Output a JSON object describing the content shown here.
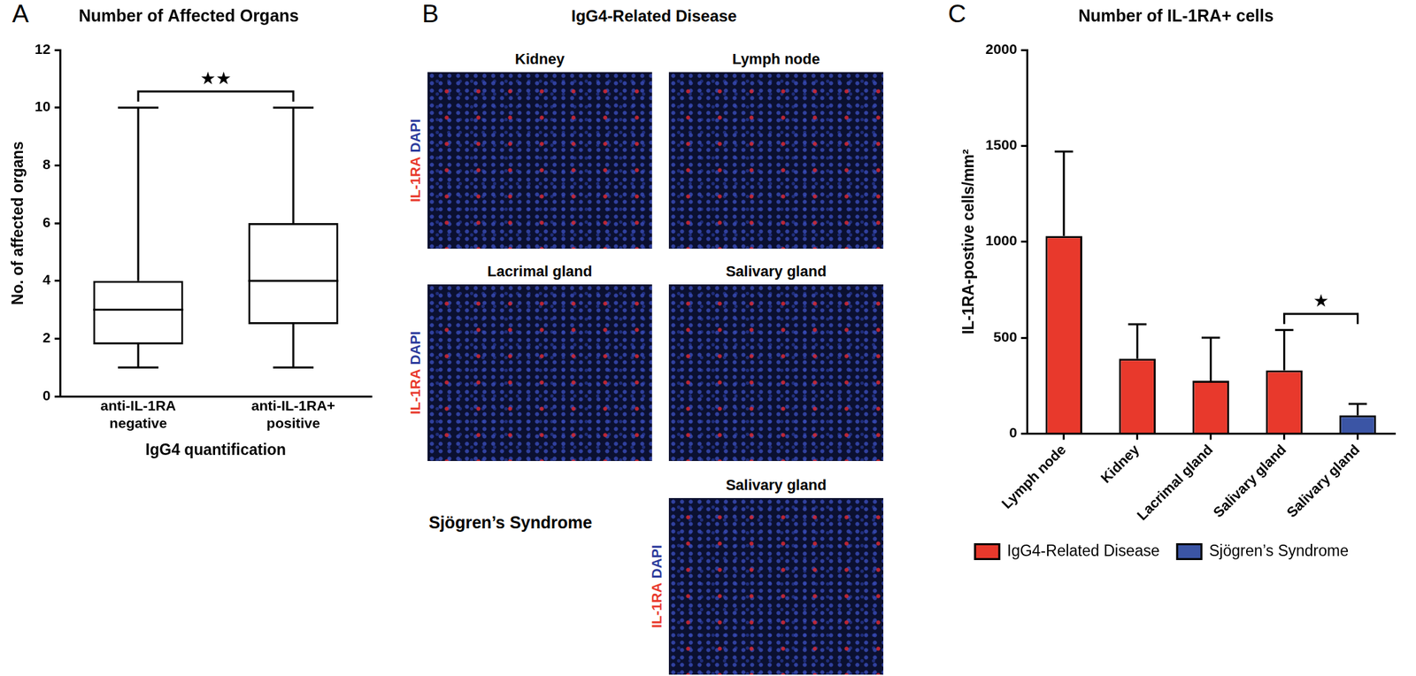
{
  "chart_data": [
    {
      "panel": "A",
      "type": "box",
      "title": "Number of Affected Organs",
      "x_label": "IgG4 quantification",
      "y_label": "No. of affected organs",
      "categories": [
        "anti-IL-1RA negative",
        "anti-IL-1RA+ positive"
      ],
      "values": [
        {
          "min": 1,
          "q1": 1.8,
          "median": 3,
          "q3": 4,
          "max": 10
        },
        {
          "min": 1,
          "q1": 2.5,
          "median": 4,
          "q3": 6,
          "max": 10
        }
      ],
      "color": "#000000",
      "ylim": [
        0,
        12
      ],
      "yticks": [
        0,
        2,
        4,
        6,
        8,
        10,
        12
      ],
      "grid": false,
      "annotations": [
        {
          "text": "★★",
          "between": [
            0,
            1
          ]
        }
      ]
    },
    {
      "panel": "C",
      "type": "bar",
      "title": "Number of IL-1RA+ cells",
      "y_label": "IL-1RA-postive cells/mm²",
      "categories": [
        "Lymph node",
        "Kidney",
        "Lacrimal gland",
        "Salivary gland",
        "Salivary gland"
      ],
      "series": [
        {
          "name": "IgG4-Related Disease",
          "color": "#e8392c",
          "values": [
            1030,
            390,
            275,
            330,
            null
          ],
          "error": [
            440,
            180,
            225,
            210,
            null
          ]
        },
        {
          "name": "Sjögren’s Syndrome",
          "color": "#3b55a5",
          "values": [
            null,
            null,
            null,
            null,
            95
          ],
          "error": [
            null,
            null,
            null,
            null,
            60
          ]
        }
      ],
      "ylim": [
        0,
        2000
      ],
      "yticks": [
        0,
        500,
        1000,
        1500,
        2000
      ],
      "grid": false,
      "legend": "bottom",
      "annotations": [
        {
          "text": "★",
          "between": [
            3,
            4
          ]
        }
      ]
    }
  ],
  "image_panel": {
    "panel": "B",
    "title": "IgG4-Related Disease",
    "stain": [
      {
        "text": "IL-1RA",
        "color": "#e8392c"
      },
      {
        "text": "DAPI",
        "color": "#2b3a9c"
      }
    ],
    "rows": [
      {
        "group": null,
        "images": [
          "Kidney",
          "Lymph node"
        ]
      },
      {
        "group": null,
        "images": [
          "Lacrimal gland",
          "Salivary gland"
        ]
      },
      {
        "group": "Sjögren’s Syndrome",
        "images": [
          null,
          "Salivary gland"
        ]
      }
    ]
  }
}
